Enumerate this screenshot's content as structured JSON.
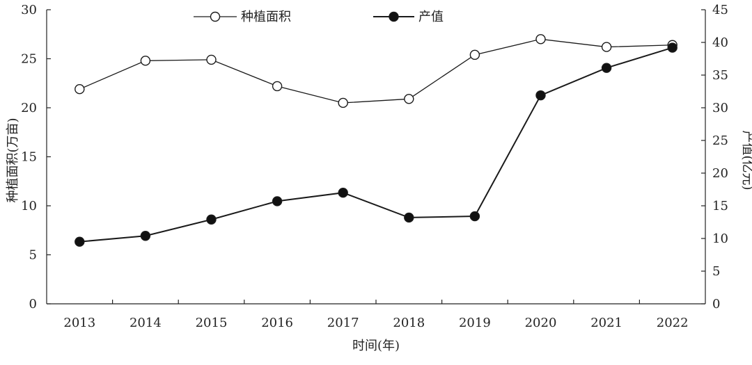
{
  "chart_data": {
    "type": "line",
    "title": "",
    "xlabel": "时间(年)",
    "ylabel_left": "种植面积(万亩)",
    "ylabel_right": "产值(亿元)",
    "x": [
      2013,
      2014,
      2015,
      2016,
      2017,
      2018,
      2019,
      2020,
      2021,
      2022
    ],
    "x_tick_labels": [
      "2013",
      "2014",
      "2015",
      "2016",
      "2017",
      "2018",
      "2019",
      "2020",
      "2021",
      "2022"
    ],
    "ylim_left": [
      0,
      30
    ],
    "ylim_right": [
      0,
      45
    ],
    "y_ticks_left": [
      0,
      5,
      10,
      15,
      20,
      25,
      30
    ],
    "y_ticks_right": [
      0,
      5,
      10,
      15,
      20,
      25,
      30,
      35,
      40,
      45
    ],
    "grid": false,
    "legend_position": "top-center",
    "series": [
      {
        "name": "种植面积",
        "axis": "left",
        "marker": "open-circle",
        "values": [
          21.9,
          24.8,
          24.9,
          22.2,
          20.5,
          20.9,
          25.4,
          27.0,
          26.2,
          26.4
        ]
      },
      {
        "name": "产值",
        "axis": "right",
        "marker": "filled-circle",
        "values": [
          9.5,
          10.4,
          12.9,
          15.7,
          17.0,
          13.2,
          13.4,
          31.9,
          36.1,
          39.2
        ]
      }
    ]
  },
  "colors": {
    "line": "#1a1a1a",
    "marker_fill_open": "#ffffff",
    "marker_fill_filled": "#111111",
    "axis": "#222222"
  }
}
